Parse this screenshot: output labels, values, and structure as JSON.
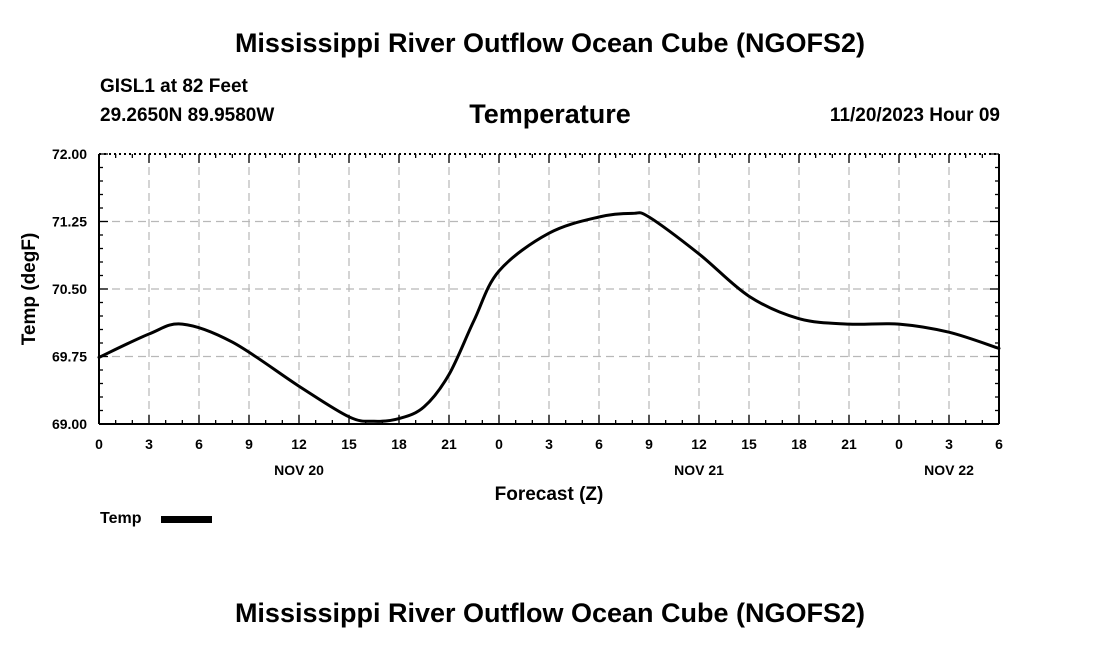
{
  "header": {
    "title": "Mississippi River Outflow Ocean Cube (NGOFS2)",
    "station": "GISL1 at 82 Feet",
    "coords": "29.2650N  89.9580W",
    "variable": "Temperature",
    "date": "11/20/2023 Hour 09"
  },
  "footer": {
    "title": "Mississippi River Outflow Ocean Cube (NGOFS2)"
  },
  "legend": {
    "label": "Temp",
    "color": "#000000"
  },
  "chart_data": {
    "type": "line",
    "title": "Temperature",
    "xlabel": "Forecast (Z)",
    "ylabel": "Temp (degF)",
    "xlim": [
      0,
      54
    ],
    "ylim": [
      69.0,
      72.0
    ],
    "grid": true,
    "y_ticks": [
      "69.00",
      "69.75",
      "70.50",
      "71.25",
      "72.00"
    ],
    "y_tick_values": [
      69.0,
      69.75,
      70.5,
      71.25,
      72.0
    ],
    "x_tick_labels": [
      "0",
      "3",
      "6",
      "9",
      "12",
      "15",
      "18",
      "21",
      "0",
      "3",
      "6",
      "9",
      "12",
      "15",
      "18",
      "21",
      "0",
      "3",
      "6"
    ],
    "x_tick_values": [
      0,
      3,
      6,
      9,
      12,
      15,
      18,
      21,
      24,
      27,
      30,
      33,
      36,
      39,
      42,
      45,
      48,
      51,
      54
    ],
    "date_labels": [
      {
        "text": "NOV 20",
        "x": 12
      },
      {
        "text": "NOV 21",
        "x": 36
      },
      {
        "text": "NOV 22",
        "x": 51
      }
    ],
    "series": [
      {
        "name": "Temp",
        "x": [
          0,
          3,
          5,
          8,
          12,
          15,
          16.5,
          18,
          19.5,
          21,
          22.5,
          24,
          27,
          30,
          32,
          33,
          36,
          39,
          42,
          45,
          48,
          51,
          54
        ],
        "values": [
          69.74,
          70.0,
          70.11,
          69.91,
          69.42,
          69.08,
          69.03,
          69.06,
          69.19,
          69.55,
          70.15,
          70.7,
          71.12,
          71.3,
          71.34,
          71.3,
          70.89,
          70.42,
          70.17,
          70.11,
          70.11,
          70.02,
          69.84
        ]
      }
    ]
  }
}
